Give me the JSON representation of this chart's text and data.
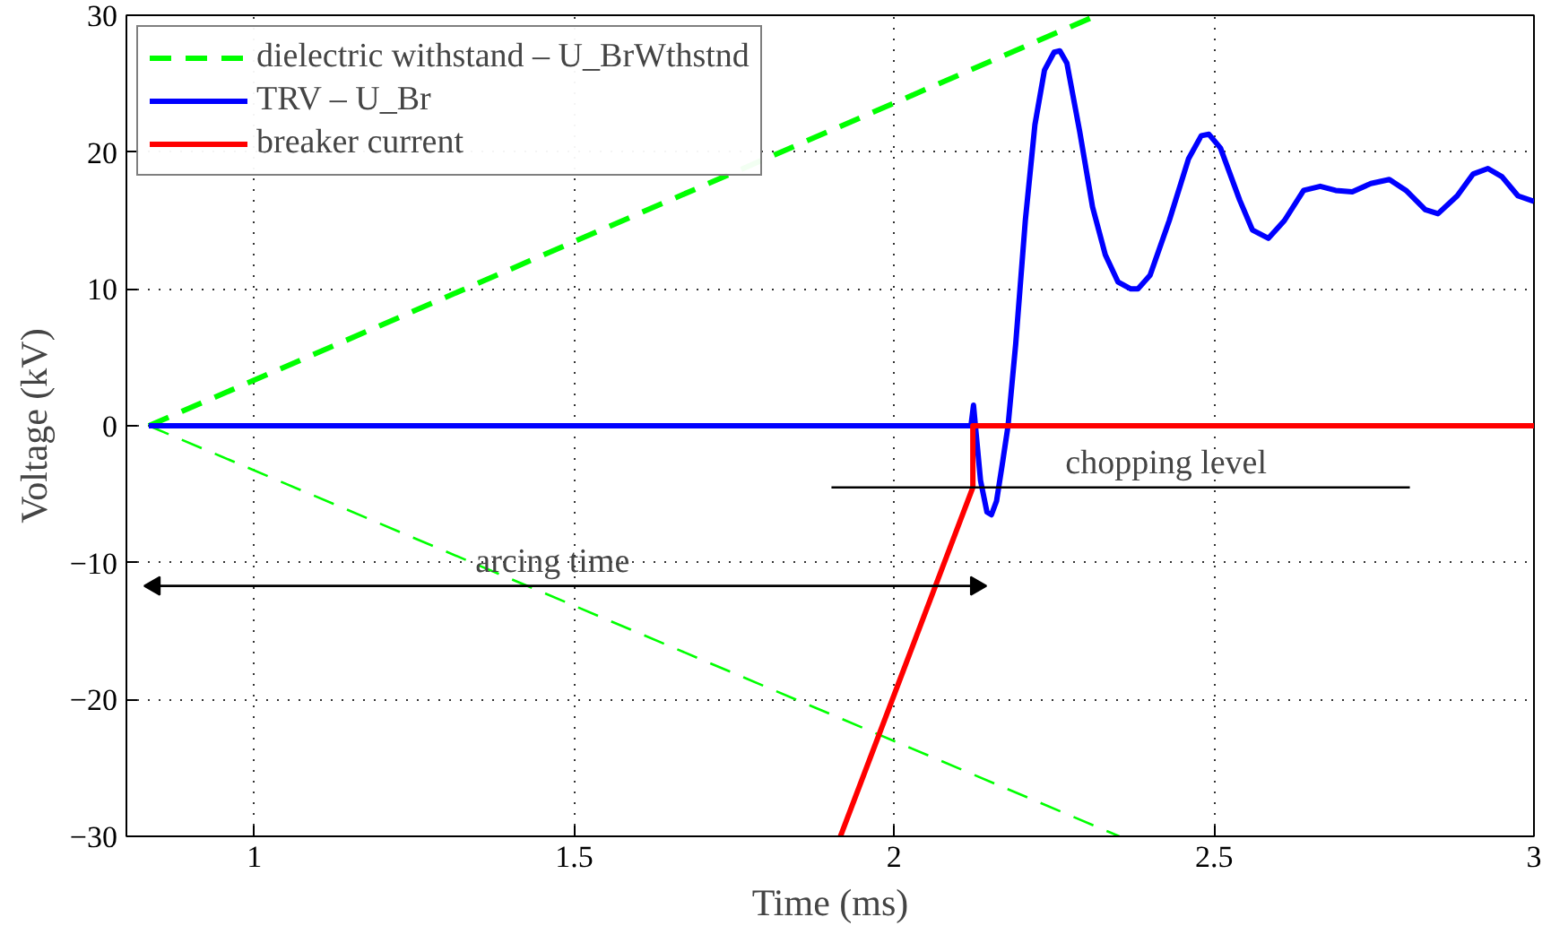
{
  "chart_data": {
    "type": "line",
    "xlabel": "Time (ms)",
    "ylabel": "Voltage (kV)",
    "xlim": [
      0.8,
      3
    ],
    "xticks": [
      1,
      1.5,
      2,
      2.5,
      3
    ],
    "ylim": [
      -30,
      30
    ],
    "yticks": [
      -30,
      -20,
      -10,
      0,
      10,
      20,
      30
    ],
    "grid": true,
    "legend": "top left",
    "line_style": "solid",
    "series": [
      {
        "name": "dielectric withstand – U_BrWthstnd",
        "color": "#00ff00",
        "line_style": "dashed",
        "x": [
          0.835,
          2.317
        ],
        "values": [
          0,
          30
        ]
      },
      {
        "color": "#00ff00",
        "line_style": "dashed",
        "x": [
          0.835,
          2.352
        ],
        "values": [
          0,
          -30
        ]
      },
      {
        "name": "TRV – U_Br",
        "color": "#0000ff",
        "x": [
          0.835,
          2.12,
          2.124,
          2.127,
          2.135,
          2.145,
          2.152,
          2.16,
          2.17,
          2.178,
          2.19,
          2.205,
          2.22,
          2.235,
          2.25,
          2.259,
          2.27,
          2.29,
          2.31,
          2.33,
          2.35,
          2.37,
          2.381,
          2.4,
          2.43,
          2.46,
          2.48,
          2.492,
          2.51,
          2.54,
          2.56,
          2.585,
          2.61,
          2.64,
          2.666,
          2.69,
          2.716,
          2.745,
          2.774,
          2.8,
          2.83,
          2.85,
          2.88,
          2.905,
          2.928,
          2.95,
          2.975,
          3.0
        ],
        "values": [
          0,
          0,
          1.5,
          0,
          -4,
          -6.3,
          -6.5,
          -5.5,
          -2.5,
          0,
          6,
          15,
          22,
          26,
          27.3,
          27.4,
          26.5,
          21.5,
          16,
          12.5,
          10.5,
          10,
          10,
          11,
          15,
          19.5,
          21.2,
          21.3,
          20.3,
          16.5,
          14.3,
          13.7,
          15,
          17.2,
          17.5,
          17.2,
          17.1,
          17.7,
          18,
          17.2,
          15.8,
          15.5,
          16.8,
          18.4,
          18.8,
          18.2,
          16.8,
          16.4
        ]
      },
      {
        "name": "breaker current",
        "color": "#ff0000",
        "x": [
          1.916,
          2.123,
          2.123,
          3.0
        ],
        "values": [
          -30,
          -4.5,
          0,
          0
        ]
      },
      {
        "color": "#000000",
        "x": [
          1.902,
          2.806
        ],
        "values": [
          -4.5,
          -4.5
        ]
      },
      {
        "marker": "triangle",
        "color": "#000000",
        "x": [
          0.844,
          2.128
        ],
        "values": [
          -11.7,
          -11.7
        ]
      }
    ],
    "annotations": [
      {
        "text": "arcing time",
        "x": 1.466,
        "y": -11.7
      },
      {
        "text": "chopping level",
        "x": 2.425,
        "y": -4.5
      }
    ]
  }
}
